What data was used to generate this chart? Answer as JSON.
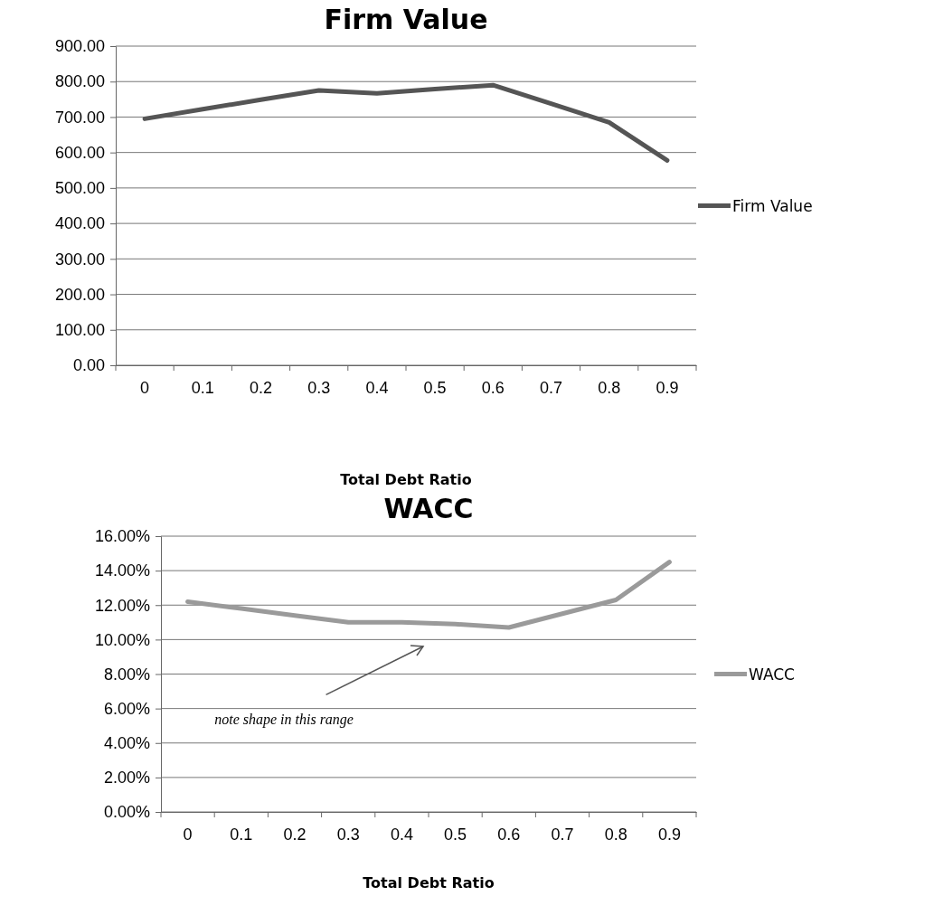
{
  "chart_data": [
    {
      "type": "line",
      "title": "Firm Value",
      "xlabel": "Total Debt Ratio",
      "categories": [
        "0",
        "0.1",
        "0.2",
        "0.3",
        "0.4",
        "0.5",
        "0.6",
        "0.7",
        "0.8",
        "0.9"
      ],
      "series": [
        {
          "name": "Firm Value",
          "color": "#555555",
          "values": [
            695,
            722,
            749,
            775,
            767,
            779,
            790,
            738,
            685,
            578
          ]
        }
      ],
      "ylim": [
        0,
        900
      ],
      "yticks": [
        {
          "value": 0,
          "label": "0.00"
        },
        {
          "value": 100,
          "label": "100.00"
        },
        {
          "value": 200,
          "label": "200.00"
        },
        {
          "value": 300,
          "label": "300.00"
        },
        {
          "value": 400,
          "label": "400.00"
        },
        {
          "value": 500,
          "label": "500.00"
        },
        {
          "value": 600,
          "label": "600.00"
        },
        {
          "value": 700,
          "label": "700.00"
        },
        {
          "value": 800,
          "label": "800.00"
        },
        {
          "value": 900,
          "label": "900.00"
        }
      ],
      "grid": "y",
      "legend": "right",
      "marker": "none",
      "line_style": "solid"
    },
    {
      "type": "line",
      "title": "WACC",
      "xlabel": "Total Debt Ratio",
      "categories": [
        "0",
        "0.1",
        "0.2",
        "0.3",
        "0.4",
        "0.5",
        "0.6",
        "0.7",
        "0.8",
        "0.9"
      ],
      "series": [
        {
          "name": "WACC",
          "color": "#9a9a9a",
          "values": [
            12.2,
            11.8,
            11.4,
            11.0,
            11.0,
            10.9,
            10.7,
            11.5,
            12.3,
            14.5
          ]
        }
      ],
      "ylim": [
        0,
        16
      ],
      "yticks": [
        {
          "value": 0,
          "label": "0.00%"
        },
        {
          "value": 2,
          "label": "2.00%"
        },
        {
          "value": 4,
          "label": "4.00%"
        },
        {
          "value": 6,
          "label": "6.00%"
        },
        {
          "value": 8,
          "label": "8.00%"
        },
        {
          "value": 10,
          "label": "10.00%"
        },
        {
          "value": 12,
          "label": "12.00%"
        },
        {
          "value": 14,
          "label": "14.00%"
        },
        {
          "value": 16,
          "label": "16.00%"
        }
      ],
      "grid": "y",
      "legend": "right",
      "marker": "none",
      "line_style": "solid",
      "annotations": [
        "note shape in this range"
      ]
    }
  ]
}
